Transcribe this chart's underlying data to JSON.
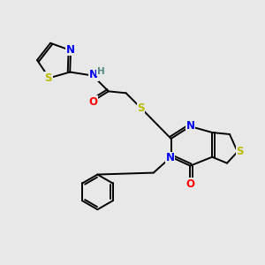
{
  "bg_color": "#e8e8e8",
  "bond_color": "#000000",
  "atom_colors": {
    "N": "#0000ee",
    "S": "#bbbb00",
    "O": "#ff0000",
    "H": "#558888",
    "C": "#000000"
  },
  "font_size": 8.5,
  "figsize": [
    3.0,
    3.0
  ],
  "dpi": 100
}
